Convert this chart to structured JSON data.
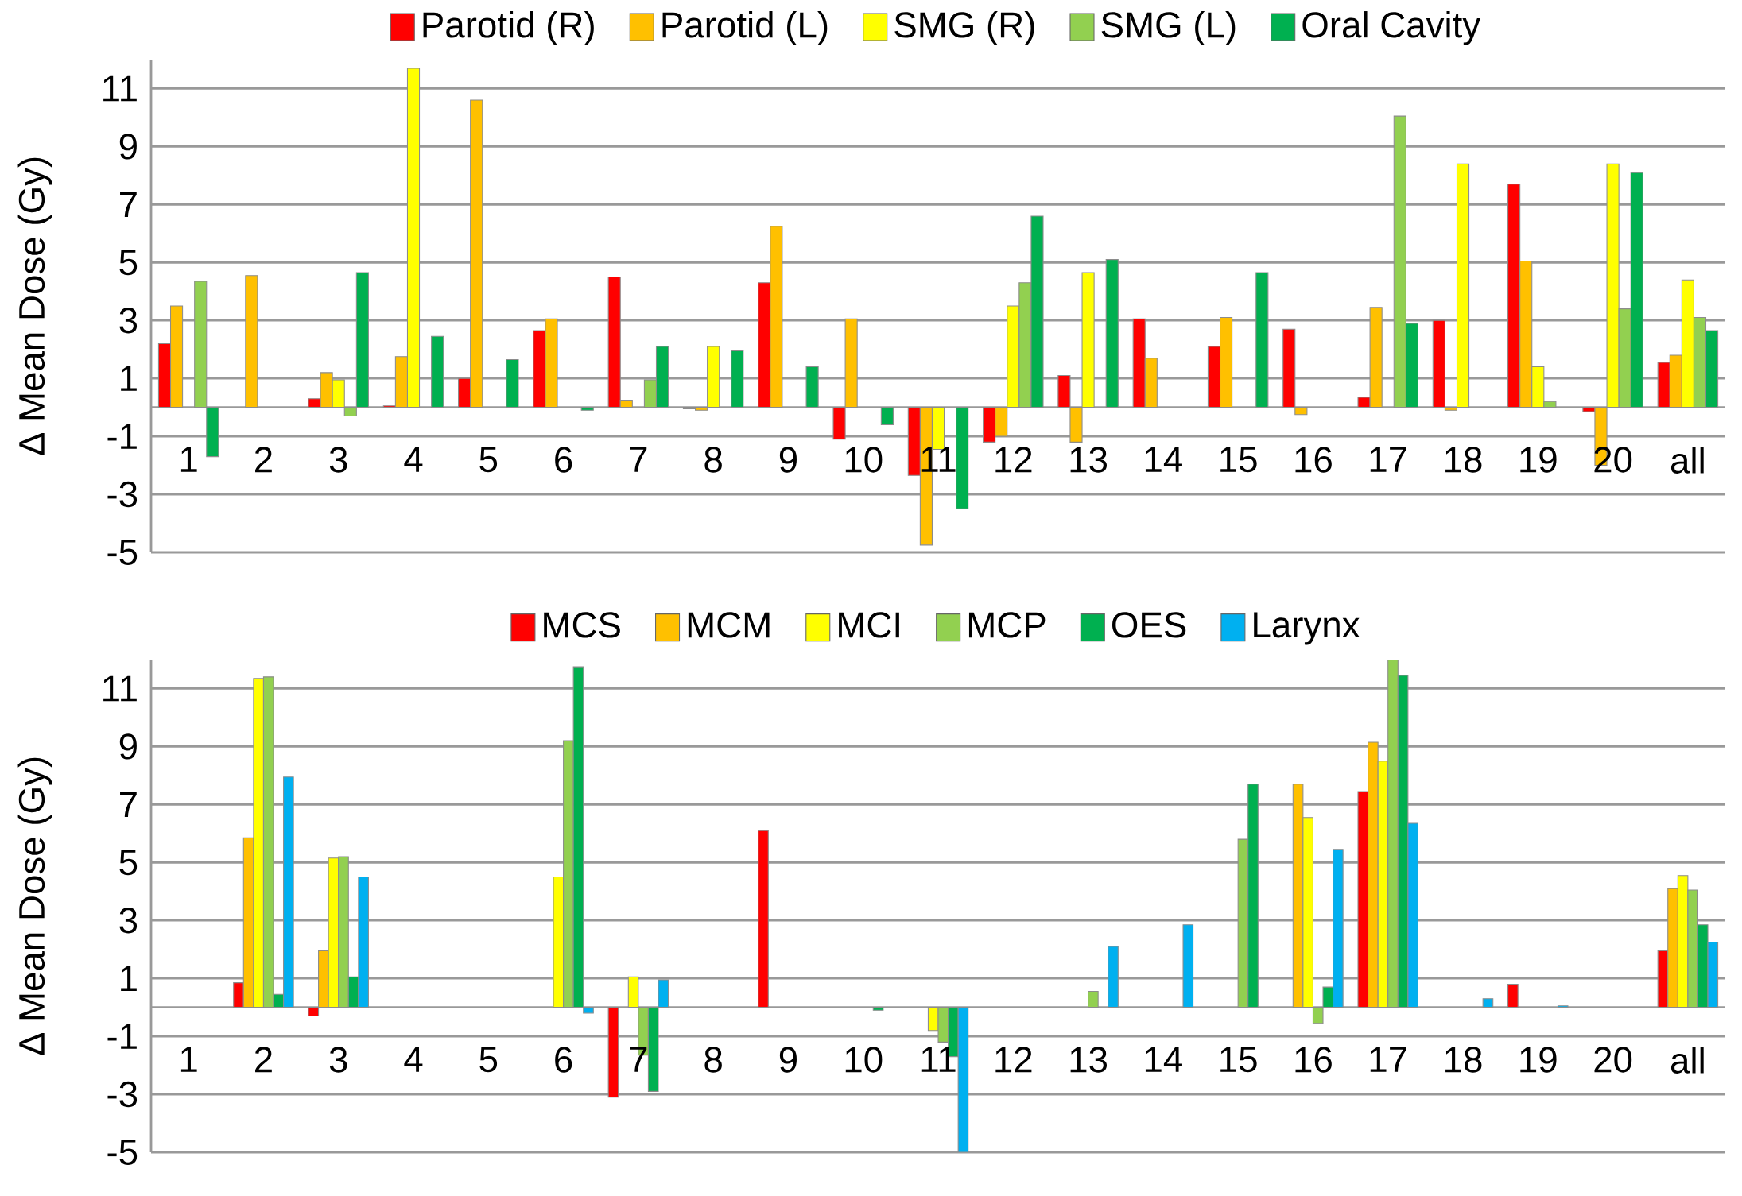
{
  "chart_data": [
    {
      "type": "bar",
      "ylabel": "Δ Mean Dose (Gy)",
      "categories": [
        "1",
        "2",
        "3",
        "4",
        "5",
        "6",
        "7",
        "8",
        "9",
        "10",
        "11",
        "12",
        "13",
        "14",
        "15",
        "16",
        "17",
        "18",
        "19",
        "20",
        "all"
      ],
      "ylim": [
        -5,
        12
      ],
      "yticks": [
        -5,
        -3,
        -1,
        1,
        3,
        5,
        7,
        9,
        11
      ],
      "grid": "y",
      "legend": "top",
      "series": [
        {
          "name": "Parotid (R)",
          "color": "#ff0000",
          "values": [
            2.2,
            null,
            0.3,
            0.05,
            1.0,
            2.65,
            4.5,
            -0.05,
            4.3,
            -1.1,
            -2.35,
            -1.2,
            1.1,
            3.05,
            2.1,
            2.7,
            0.35,
            3.0,
            7.7,
            -0.15,
            1.55
          ]
        },
        {
          "name": "Parotid (L)",
          "color": "#ffc000",
          "values": [
            3.5,
            4.55,
            1.2,
            1.75,
            10.6,
            3.05,
            0.25,
            -0.1,
            6.25,
            3.05,
            -4.75,
            -1.0,
            -1.2,
            1.7,
            3.1,
            -0.25,
            3.45,
            -0.1,
            5.05,
            -2.0,
            1.8
          ]
        },
        {
          "name": "SMG (R)",
          "color": "#ffff00",
          "values": [
            null,
            null,
            0.95,
            11.7,
            null,
            null,
            null,
            2.1,
            null,
            null,
            -1.45,
            3.5,
            4.65,
            null,
            null,
            null,
            null,
            8.4,
            1.4,
            8.4,
            4.4
          ]
        },
        {
          "name": "SMG (L)",
          "color": "#92d050",
          "values": [
            4.35,
            null,
            -0.3,
            null,
            null,
            null,
            0.95,
            null,
            null,
            null,
            null,
            4.3,
            null,
            null,
            null,
            null,
            10.05,
            null,
            0.2,
            3.4,
            3.1
          ]
        },
        {
          "name": "Oral Cavity",
          "color": "#00b050",
          "values": [
            -1.7,
            null,
            4.65,
            2.45,
            1.65,
            -0.1,
            2.1,
            1.95,
            1.4,
            -0.6,
            -3.5,
            6.6,
            5.1,
            null,
            4.65,
            null,
            2.9,
            null,
            null,
            8.1,
            2.65
          ]
        }
      ]
    },
    {
      "type": "bar",
      "ylabel": "Δ Mean Dose (Gy)",
      "categories": [
        "1",
        "2",
        "3",
        "4",
        "5",
        "6",
        "7",
        "8",
        "9",
        "10",
        "11",
        "12",
        "13",
        "14",
        "15",
        "16",
        "17",
        "18",
        "19",
        "20",
        "all"
      ],
      "ylim": [
        -5,
        12
      ],
      "yticks": [
        -5,
        -3,
        -1,
        1,
        3,
        5,
        7,
        9,
        11
      ],
      "grid": "y",
      "legend": "top",
      "series": [
        {
          "name": "MCS",
          "color": "#ff0000",
          "values": [
            null,
            0.85,
            -0.3,
            null,
            null,
            null,
            -3.1,
            null,
            6.1,
            null,
            null,
            null,
            null,
            null,
            null,
            null,
            7.45,
            null,
            0.8,
            null,
            1.95
          ]
        },
        {
          "name": "MCM",
          "color": "#ffc000",
          "values": [
            null,
            5.85,
            1.95,
            null,
            null,
            null,
            null,
            null,
            null,
            null,
            null,
            null,
            null,
            null,
            null,
            7.7,
            9.15,
            null,
            null,
            null,
            4.1
          ]
        },
        {
          "name": "MCI",
          "color": "#ffff00",
          "values": [
            null,
            11.35,
            5.15,
            null,
            null,
            4.5,
            1.05,
            null,
            null,
            null,
            -0.8,
            null,
            null,
            null,
            null,
            6.55,
            8.5,
            null,
            null,
            null,
            4.55
          ]
        },
        {
          "name": "MCP",
          "color": "#92d050",
          "values": [
            null,
            11.4,
            5.2,
            null,
            null,
            9.2,
            -1.65,
            null,
            null,
            null,
            -1.2,
            null,
            0.55,
            null,
            5.8,
            -0.55,
            12.0,
            null,
            null,
            null,
            4.05
          ]
        },
        {
          "name": "OES",
          "color": "#00b050",
          "values": [
            null,
            0.45,
            1.05,
            null,
            null,
            11.75,
            -2.9,
            null,
            null,
            -0.1,
            -1.7,
            null,
            null,
            null,
            7.7,
            0.7,
            11.45,
            null,
            null,
            null,
            2.85
          ]
        },
        {
          "name": "Larynx",
          "color": "#00b0f0",
          "values": [
            null,
            7.95,
            4.5,
            null,
            null,
            -0.2,
            0.95,
            null,
            null,
            null,
            -5.0,
            null,
            2.1,
            2.85,
            null,
            5.45,
            6.35,
            0.3,
            0.05,
            null,
            2.25
          ]
        }
      ]
    }
  ]
}
